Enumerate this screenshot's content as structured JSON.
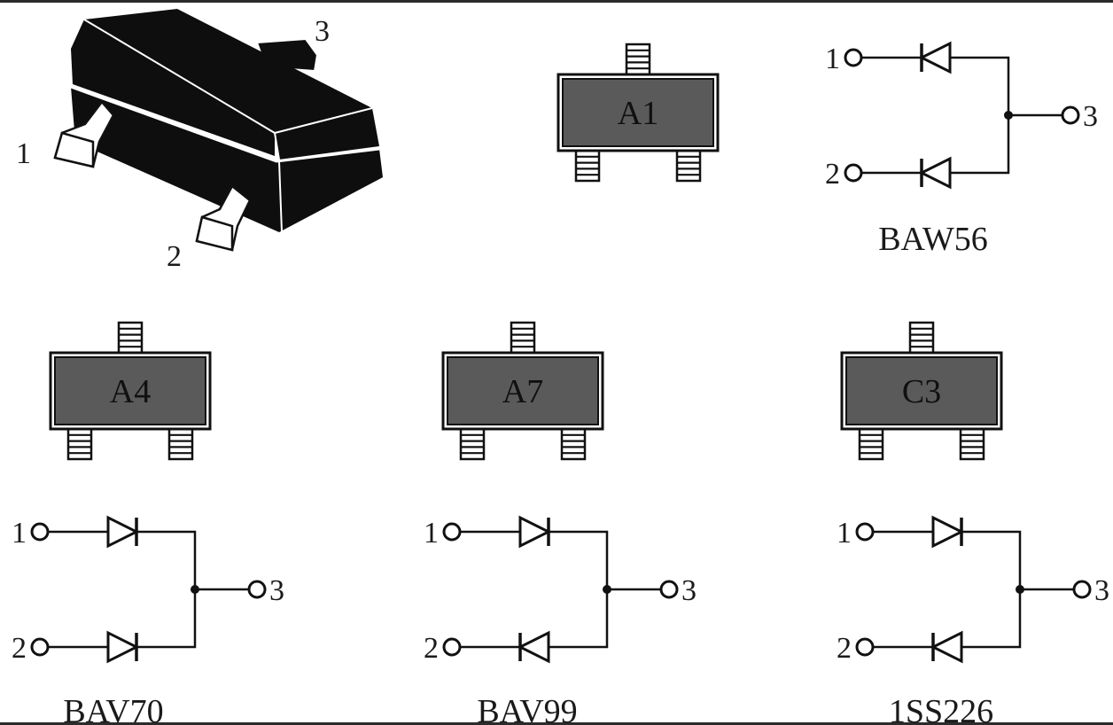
{
  "colors": {
    "body_dark": "#5a5a5a",
    "body_3d": "#0e0e0e",
    "line": "#111111",
    "frame": "#2b2b2b"
  },
  "package_3d": {
    "pin_labels": [
      "1",
      "2",
      "3"
    ]
  },
  "packages": [
    {
      "marking": "A1"
    },
    {
      "marking": "A4"
    },
    {
      "marking": "A7"
    },
    {
      "marking": "C3"
    }
  ],
  "schematics": [
    {
      "name": "BAW56",
      "pin1": "1",
      "pin2": "2",
      "pin3": "3",
      "diode1_dir": "left",
      "diode2_dir": "left"
    },
    {
      "name": "BAV70",
      "pin1": "1",
      "pin2": "2",
      "pin3": "3",
      "diode1_dir": "right",
      "diode2_dir": "right"
    },
    {
      "name": "BAV99",
      "pin1": "1",
      "pin2": "2",
      "pin3": "3",
      "diode1_dir": "right",
      "diode2_dir": "left"
    },
    {
      "name": "1SS226",
      "pin1": "1",
      "pin2": "2",
      "pin3": "3",
      "diode1_dir": "right",
      "diode2_dir": "left"
    }
  ]
}
